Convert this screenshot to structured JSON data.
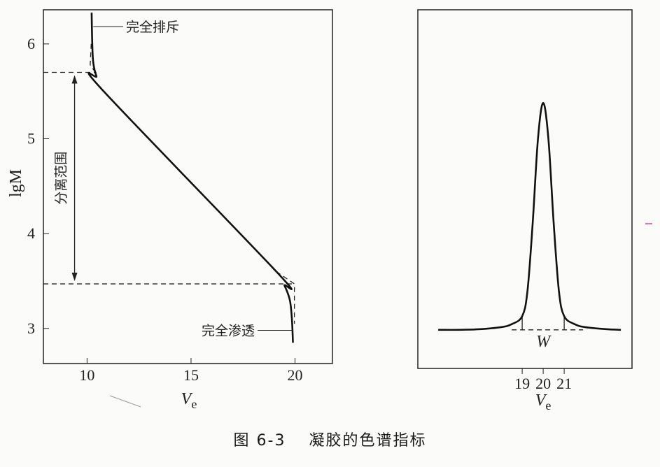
{
  "chart_data": [
    {
      "type": "line",
      "xlabel": "V",
      "xlabel_sub": "e",
      "ylabel": "lgM",
      "xlim": [
        7.9,
        21.8
      ],
      "ylim": [
        2.63,
        6.36
      ],
      "xticks": [
        "10",
        "15",
        "20"
      ],
      "yticks": [
        "3",
        "4",
        "5",
        "6"
      ],
      "grid": false,
      "series": [
        {
          "x": [
            10.22,
            10.25,
            10.3,
            10.45,
            10.8,
            19.1,
            19.5,
            19.75,
            19.85,
            19.9
          ],
          "y": [
            6.33,
            6.0,
            5.8,
            5.66,
            5.5,
            3.6,
            3.45,
            3.3,
            3.1,
            2.85
          ]
        }
      ],
      "reference_lines": {
        "upper_lgM": 5.7,
        "lower_lgM": 3.47
      },
      "annotations": {
        "exclusion": "完全排斥",
        "permeation": "完全渗透",
        "range": "分离范围"
      }
    },
    {
      "type": "line",
      "xlabel": "V",
      "xlabel_sub": "e",
      "xlim": [
        14.03,
        24.23
      ],
      "ylim": [
        -0.17,
        1.41
      ],
      "xticks": [
        "19",
        "20",
        "21"
      ],
      "grid": false,
      "series": [
        {
          "x": [
            15.0,
            16,
            17,
            18,
            18.5,
            19,
            19.25,
            19.5,
            19.75,
            20,
            20.25,
            20.5,
            20.75,
            21,
            21.5,
            22,
            23,
            23.7
          ],
          "y": [
            0.0,
            0.0,
            0.003,
            0.012,
            0.025,
            0.06,
            0.17,
            0.47,
            0.84,
            1.0,
            0.84,
            0.47,
            0.17,
            0.06,
            0.025,
            0.012,
            0.003,
            0.0
          ]
        }
      ],
      "width_marker": {
        "label": "W",
        "from": 19,
        "to": 21
      }
    }
  ],
  "caption": "图 6-3　 凝胶的色谱指标"
}
